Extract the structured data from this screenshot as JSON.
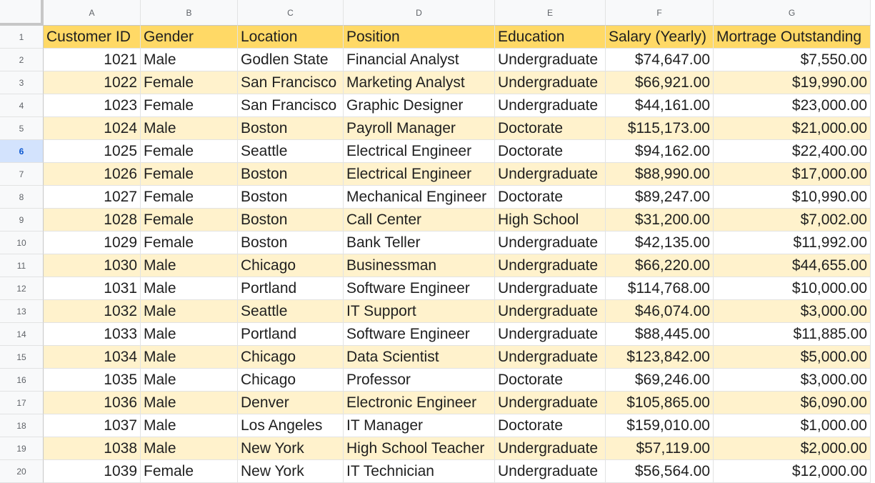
{
  "columns": [
    "A",
    "B",
    "C",
    "D",
    "E",
    "F",
    "G"
  ],
  "header": [
    "Customer ID",
    "Gender",
    "Location",
    "Position",
    "Education",
    "Salary (Yearly)",
    "Mortrage Outstanding"
  ],
  "rows": [
    [
      "1021",
      "Male",
      "Godlen State",
      "Financial Analyst",
      "Undergraduate",
      "$74,647.00",
      "$7,550.00"
    ],
    [
      "1022",
      "Female",
      "San Francisco",
      "Marketing Analyst",
      "Undergraduate",
      "$66,921.00",
      "$19,990.00"
    ],
    [
      "1023",
      "Female",
      "San Francisco",
      "Graphic Designer",
      "Undergraduate",
      "$44,161.00",
      "$23,000.00"
    ],
    [
      "1024",
      "Male",
      "Boston",
      "Payroll Manager",
      "Doctorate",
      "$115,173.00",
      "$21,000.00"
    ],
    [
      "1025",
      "Female",
      "Seattle",
      "Electrical Engineer",
      "Doctorate",
      "$94,162.00",
      "$22,400.00"
    ],
    [
      "1026",
      "Female",
      "Boston",
      "Electrical Engineer",
      "Undergraduate",
      "$88,990.00",
      "$17,000.00"
    ],
    [
      "1027",
      "Female",
      "Boston",
      "Mechanical Engineer",
      "Doctorate",
      "$89,247.00",
      "$10,990.00"
    ],
    [
      "1028",
      "Female",
      "Boston",
      "Call Center",
      "High School",
      "$31,200.00",
      "$7,002.00"
    ],
    [
      "1029",
      "Female",
      "Boston",
      "Bank Teller",
      "Undergraduate",
      "$42,135.00",
      "$11,992.00"
    ],
    [
      "1030",
      "Male",
      "Chicago",
      "Businessman",
      "Undergraduate",
      "$66,220.00",
      "$44,655.00"
    ],
    [
      "1031",
      "Male",
      "Portland",
      "Software Engineer",
      "Undergraduate",
      "$114,768.00",
      "$10,000.00"
    ],
    [
      "1032",
      "Male",
      "Seattle",
      "IT Support",
      "Undergraduate",
      "$46,074.00",
      "$3,000.00"
    ],
    [
      "1033",
      "Male",
      "Portland",
      "Software Engineer",
      "Undergraduate",
      "$88,445.00",
      "$11,885.00"
    ],
    [
      "1034",
      "Male",
      "Chicago",
      "Data Scientist",
      "Undergraduate",
      "$123,842.00",
      "$5,000.00"
    ],
    [
      "1035",
      "Male",
      "Chicago",
      "Professor",
      "Doctorate",
      "$69,246.00",
      "$3,000.00"
    ],
    [
      "1036",
      "Male",
      "Denver",
      "Electronic Engineer",
      "Undergraduate",
      "$105,865.00",
      "$6,090.00"
    ],
    [
      "1037",
      "Male",
      "Los Angeles",
      "IT Manager",
      "Doctorate",
      "$159,010.00",
      "$1,000.00"
    ],
    [
      "1038",
      "Male",
      "New York",
      "High School Teacher",
      "Undergraduate",
      "$57,119.00",
      "$2,000.00"
    ],
    [
      "1039",
      "Female",
      "New York",
      "IT Technician",
      "Undergraduate",
      "$56,564.00",
      "$12,000.00"
    ]
  ],
  "selected_row": 6
}
